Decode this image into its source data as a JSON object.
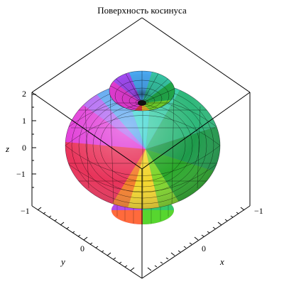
{
  "title": "Поверхность косинуса",
  "axes": {
    "x": {
      "label": "x",
      "ticks": [
        "−1",
        "0",
        "1"
      ]
    },
    "y": {
      "label": "y",
      "ticks": [
        "−1",
        "0"
      ]
    },
    "z": {
      "label": "z",
      "ticks": [
        "2",
        "1",
        "0",
        "−1"
      ]
    }
  },
  "surface": {
    "name": "cosine surface of revolution",
    "coloring": "hue by angle (rainbow)",
    "mesh_color": "#000000",
    "box_line_color": "#000000"
  }
}
